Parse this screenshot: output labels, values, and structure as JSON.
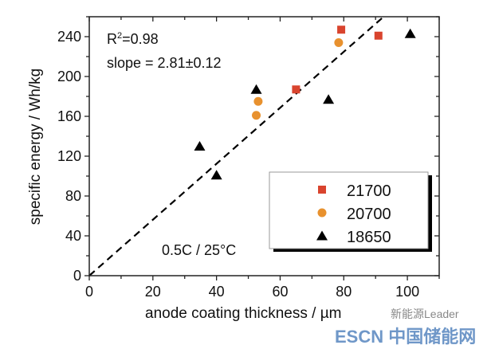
{
  "chart_data": {
    "type": "scatter",
    "xlabel": "anode coating thickness / µm",
    "ylabel": "specific energy / Wh/kg",
    "xlim": [
      0,
      110
    ],
    "ylim": [
      0,
      260
    ],
    "xticks": [
      0,
      20,
      40,
      60,
      80,
      100
    ],
    "yticks": [
      0,
      40,
      80,
      120,
      160,
      200,
      240
    ],
    "grid": false,
    "legend_placement": "bottom-right",
    "series": [
      {
        "name": "21700",
        "marker": "square",
        "color": "#d9442e",
        "points": [
          [
            79.2,
            247
          ],
          [
            90.9,
            241
          ],
          [
            65.0,
            187
          ]
        ]
      },
      {
        "name": "20700",
        "marker": "circle",
        "color": "#e8912e",
        "points": [
          [
            78.4,
            234
          ],
          [
            53.1,
            175
          ],
          [
            52.5,
            161
          ]
        ]
      },
      {
        "name": "18650",
        "marker": "triangle",
        "color": "#000000",
        "points": [
          [
            100.9,
            243
          ],
          [
            52.5,
            187
          ],
          [
            75.2,
            177
          ],
          [
            34.7,
            130
          ],
          [
            40.0,
            101
          ]
        ]
      }
    ],
    "fit_line": {
      "style": "dashed",
      "slope": 2.81,
      "intercept": 0
    },
    "annotations": {
      "r2": "R²=0.98",
      "slope": "slope = 2.81±0.12",
      "condition": "0.5C / 25°C"
    }
  },
  "watermark": {
    "logo": "ESCN 中国储能网",
    "source": "新能源Leader"
  }
}
